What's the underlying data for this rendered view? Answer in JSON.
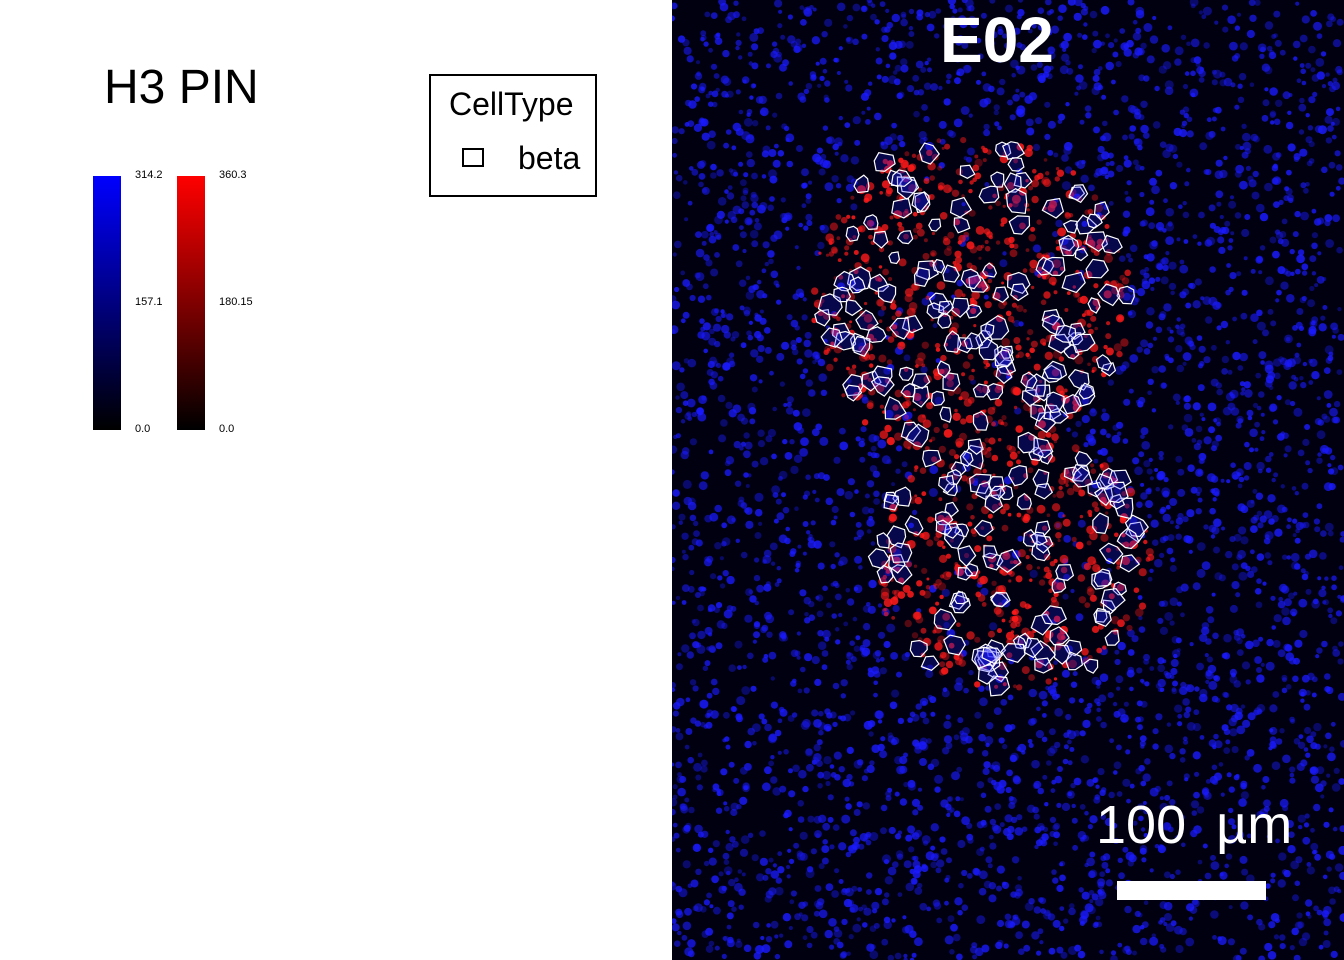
{
  "title": "H3 PIN",
  "colorbars": [
    {
      "channel": "blue",
      "color_low": "#000000",
      "color_high": "#0000ff",
      "max_label": "314.2",
      "mid_label": "157.1",
      "min_label": "0.0"
    },
    {
      "channel": "red",
      "color_low": "#000000",
      "color_high": "#ff0000",
      "max_label": "360.3",
      "mid_label": "180.15",
      "min_label": "0.0"
    }
  ],
  "legend": {
    "title": "CellType",
    "items": [
      {
        "label": "beta",
        "outline_color": "#ffffff"
      }
    ]
  },
  "image_panel": {
    "sample_id": "E02",
    "scale_bar_label": "100  µm",
    "background_color": "#000010",
    "nuclei_color": "#1a1aff",
    "signal_color": "#ff1a1a",
    "outline_color": "#ffffff"
  }
}
